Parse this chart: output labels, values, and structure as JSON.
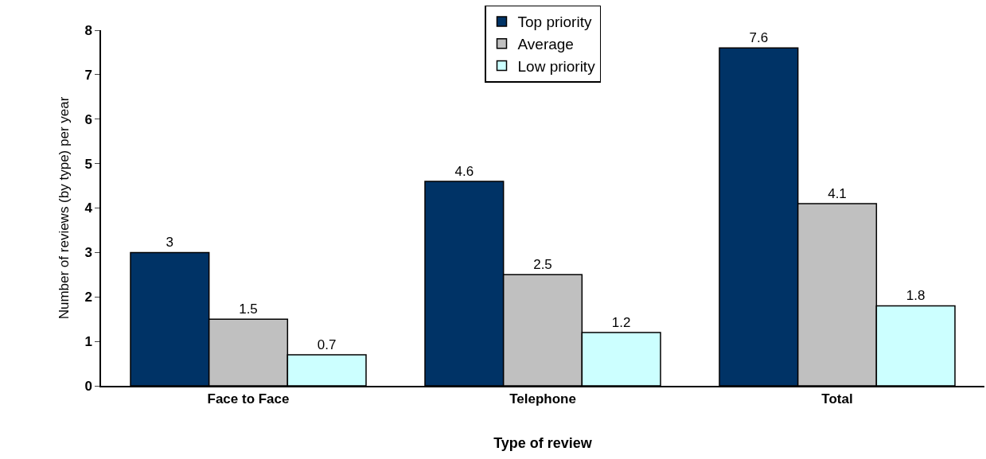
{
  "chart_data": {
    "type": "bar",
    "xlabel": "Type of review",
    "ylabel": "Number of reviews (by type) per year",
    "categories": [
      "Face to Face",
      "Telephone",
      "Total"
    ],
    "series": [
      {
        "name": "Top priority",
        "color": "#003366",
        "values": [
          3,
          4.6,
          7.6
        ]
      },
      {
        "name": "Average",
        "color": "#c0c0c0",
        "values": [
          1.5,
          2.5,
          4.1
        ]
      },
      {
        "name": "Low priority",
        "color": "#ccffff",
        "values": [
          0.7,
          1.2,
          1.8
        ]
      }
    ],
    "ylim": [
      0,
      8
    ],
    "yticks": [
      0,
      1,
      2,
      3,
      4,
      5,
      6,
      7,
      8
    ],
    "grid": false,
    "legend": "top",
    "data_labels": true
  }
}
